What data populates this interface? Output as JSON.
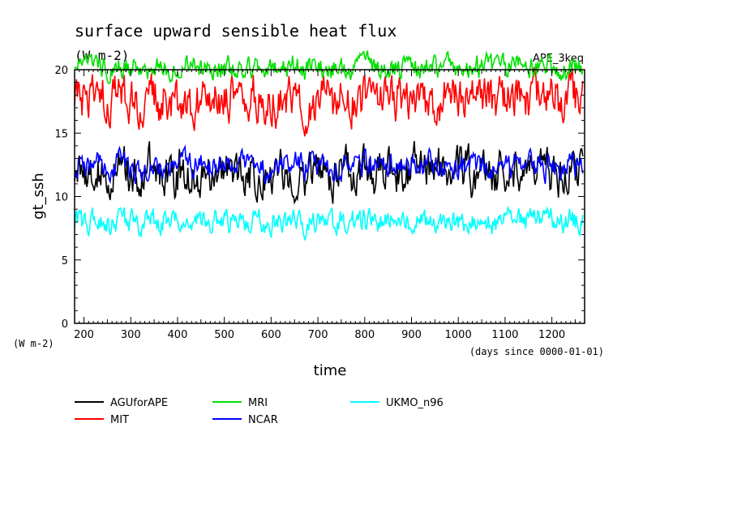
{
  "chart_data": {
    "type": "line",
    "title": "surface upward sensible heat flux",
    "units": "(W m-2)",
    "experiment": "APE_3keq",
    "ylabel": "gt_ssh",
    "yunit": "(W m-2)",
    "xlabel": "time",
    "xunit": "(days since 0000-01-01)",
    "xlim": [
      180,
      1270
    ],
    "ylim": [
      0,
      20
    ],
    "xticks": [
      200,
      300,
      400,
      500,
      600,
      700,
      800,
      900,
      1000,
      1100,
      1200
    ],
    "xtick_labels": [
      "200",
      "300",
      "400",
      "500",
      "600",
      "700",
      "800",
      "900",
      "1000",
      "1100",
      "1200"
    ],
    "yticks": [
      0,
      5,
      10,
      15,
      20
    ],
    "ytick_labels": [
      "0",
      "5",
      "10",
      "15",
      "20"
    ],
    "grid": false,
    "legend_position": "bottom-left",
    "series_style": "noisy daily time series; mean and fluctuation range read from plot",
    "series": [
      {
        "name": "AGUforAPE",
        "color": "#000000",
        "mean": 12.0,
        "min": 9.2,
        "max": 15.2
      },
      {
        "name": "MIT",
        "color": "#ff0000",
        "mean": 17.6,
        "min": 14.6,
        "max": 21.8
      },
      {
        "name": "MRI",
        "color": "#00e000",
        "mean": 20.2,
        "min": 18.8,
        "max": 22.4
      },
      {
        "name": "NCAR",
        "color": "#0000ff",
        "mean": 12.4,
        "min": 10.8,
        "max": 15.3
      },
      {
        "name": "UKMO_n96",
        "color": "#00ffff",
        "mean": 8.0,
        "min": 6.5,
        "max": 10.0
      }
    ]
  }
}
